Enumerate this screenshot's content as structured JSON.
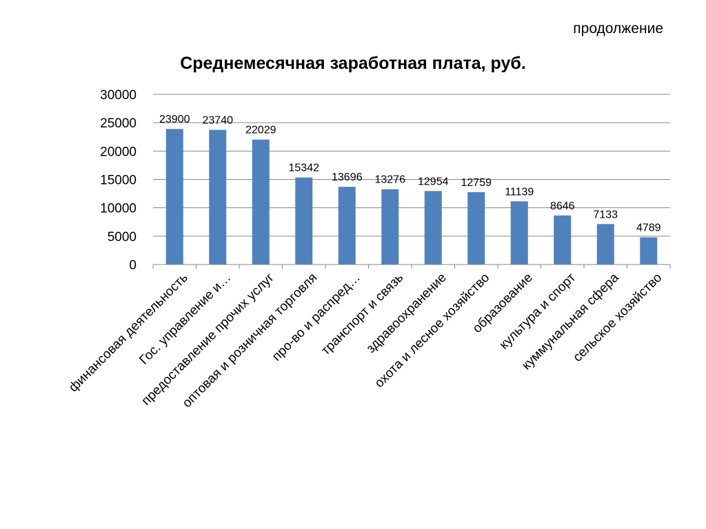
{
  "header": {
    "note": "продолжение"
  },
  "chart_data": {
    "type": "bar",
    "title": "Среднемесячная заработная плата, руб.",
    "categories": [
      "финансовая деятельность",
      "Гос. управление и…",
      "предоставление прочих услуг",
      "оптовая и розничная торговля",
      "про-во и распред…",
      "транспорт и связь",
      "здравоохранение",
      "охота и лесное хозяйство",
      "образование",
      "культура и спорт",
      "куммунальная сфера",
      "сельское хозяйство"
    ],
    "values": [
      23900,
      23740,
      22029,
      15342,
      13696,
      13276,
      12954,
      12759,
      11139,
      8646,
      7133,
      4789
    ],
    "ylim": [
      0,
      30000
    ],
    "yticks": [
      0,
      5000,
      10000,
      15000,
      20000,
      25000,
      30000
    ],
    "grid": true,
    "legend": "none",
    "bar_color": "#4F81BD",
    "grid_color": "#868686"
  }
}
